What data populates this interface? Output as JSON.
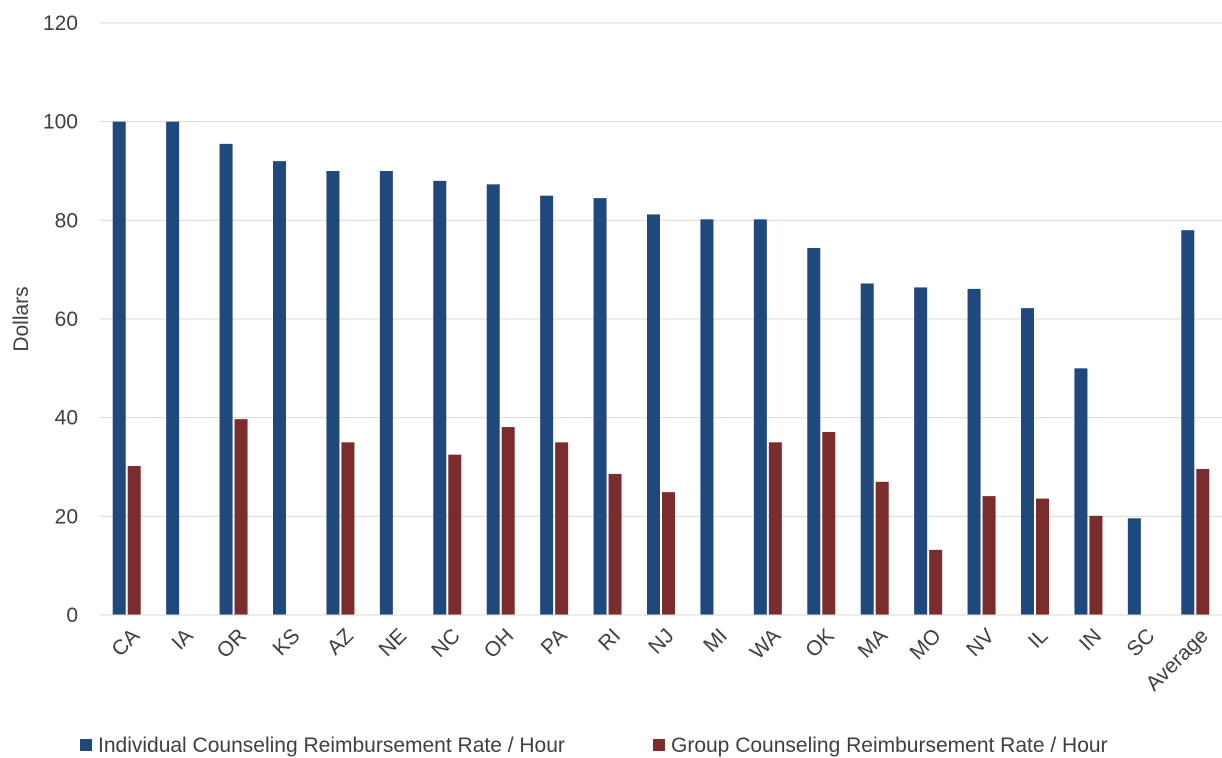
{
  "chart_data": {
    "type": "bar",
    "ylabel": "Dollars",
    "xlabel": "",
    "ylim": [
      0,
      120
    ],
    "y_ticks": [
      0,
      20,
      40,
      60,
      80,
      100,
      120
    ],
    "grid": true,
    "legend_position": "bottom",
    "categories": [
      "CA",
      "IA",
      "OR",
      "KS",
      "AZ",
      "NE",
      "NC",
      "OH",
      "PA",
      "RI",
      "NJ",
      "MI",
      "WA",
      "OK",
      "MA",
      "MO",
      "NV",
      "IL",
      "IN",
      "SC",
      "Average"
    ],
    "series": [
      {
        "name": "Individual Counseling Reimbursement Rate / Hour",
        "color": "#1f497d",
        "values": [
          100,
          100,
          95.5,
          92,
          90,
          90,
          88,
          87.3,
          85,
          84.5,
          81.2,
          80.2,
          80.2,
          74.4,
          67.2,
          66.4,
          66.1,
          62.2,
          50,
          19.6,
          78
        ]
      },
      {
        "name": "Group Counseling Reimbursement Rate / Hour",
        "color": "#7b2c2c",
        "values": [
          30.2,
          null,
          39.7,
          null,
          35,
          null,
          32.5,
          38.1,
          35,
          28.6,
          24.9,
          null,
          35,
          37.1,
          27,
          13.2,
          24.1,
          23.6,
          20.1,
          null,
          29.6
        ]
      }
    ]
  }
}
